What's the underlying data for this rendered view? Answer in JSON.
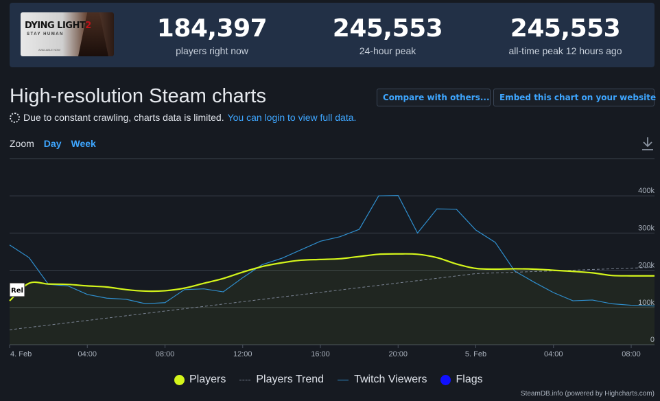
{
  "header": {
    "game_logo": {
      "title": "DYING LIGHT",
      "number": "2",
      "subtitle": "STAY HUMAN",
      "availability": "AVAILABLE NOW"
    },
    "stats": [
      {
        "value": "184,397",
        "label": "players right now"
      },
      {
        "value": "245,553",
        "label": "24-hour peak"
      },
      {
        "value": "245,553",
        "label": "all-time peak 12 hours ago"
      }
    ]
  },
  "section": {
    "title": "High-resolution Steam charts",
    "compare_button": "Compare with others...",
    "embed_button": "Embed this chart on your website",
    "notice_text": "Due to constant crawling, charts data is limited.",
    "notice_link": "You can login to view full data."
  },
  "zoom": {
    "label": "Zoom",
    "options": [
      "Day",
      "Week"
    ]
  },
  "colors": {
    "players": "#d4f51b",
    "trend": "#7b8494",
    "twitch": "#2f8fcf",
    "flags": "#1010ff",
    "accent": "#3ea6ff"
  },
  "icons": {
    "download": "download-icon",
    "notice": "spinner-icon"
  },
  "chart_data": {
    "type": "line",
    "x_unit": "hours since 4. Feb 00:00",
    "x_tick_labels": [
      "4. Feb",
      "04:00",
      "08:00",
      "12:00",
      "16:00",
      "20:00",
      "5. Feb",
      "04:00",
      "08:00"
    ],
    "x_ticks": [
      0,
      4,
      8,
      12,
      16,
      20,
      24,
      28,
      32
    ],
    "y_tick_labels": [
      "0",
      "100k",
      "200k",
      "300k",
      "400k"
    ],
    "y_ticks": [
      0,
      100000,
      200000,
      300000,
      400000
    ],
    "xlim": [
      0,
      33.2
    ],
    "ylim": [
      0,
      500000
    ],
    "grid": true,
    "legend_position": "bottom",
    "flag_label": "Rel",
    "series": [
      {
        "name": "Players",
        "x": [
          0,
          1,
          2,
          3,
          4,
          5,
          6,
          7,
          8,
          9,
          10,
          11,
          12,
          13,
          14,
          15,
          16,
          17,
          18,
          19,
          20,
          21,
          22,
          23,
          24,
          25,
          26,
          27,
          28,
          29,
          30,
          31,
          32,
          33.2
        ],
        "values": [
          118000,
          165000,
          163000,
          162000,
          158000,
          155000,
          148000,
          144000,
          145000,
          152000,
          165000,
          178000,
          195000,
          210000,
          220000,
          227000,
          229000,
          231000,
          237000,
          243000,
          244000,
          243000,
          234000,
          217000,
          205000,
          203000,
          204000,
          203000,
          200000,
          197000,
          193000,
          186000,
          185000,
          185000
        ]
      },
      {
        "name": "Players Trend",
        "x": [
          0,
          24,
          33.2
        ],
        "values": [
          40000,
          191000,
          208000
        ]
      },
      {
        "name": "Twitch Viewers",
        "x": [
          0,
          1,
          2,
          3,
          4,
          5,
          6,
          7,
          8,
          9,
          10,
          11,
          12,
          13,
          14,
          15,
          16,
          17,
          18,
          19,
          20,
          21,
          22,
          23,
          24,
          25,
          26,
          27,
          28,
          29,
          30,
          31,
          32,
          33.2
        ],
        "values": [
          268000,
          234000,
          162000,
          158000,
          135000,
          125000,
          122000,
          110000,
          113000,
          148000,
          150000,
          142000,
          180000,
          215000,
          232000,
          255000,
          278000,
          290000,
          310000,
          400000,
          401000,
          300000,
          365000,
          364000,
          308000,
          275000,
          198000,
          168000,
          140000,
          118000,
          120000,
          110000,
          106000,
          104000
        ]
      },
      {
        "name": "Flags",
        "x": [],
        "values": []
      }
    ]
  },
  "legend": [
    "Players",
    "Players Trend",
    "Twitch Viewers",
    "Flags"
  ],
  "credits": "SteamDB.info (powered by Highcharts.com)"
}
